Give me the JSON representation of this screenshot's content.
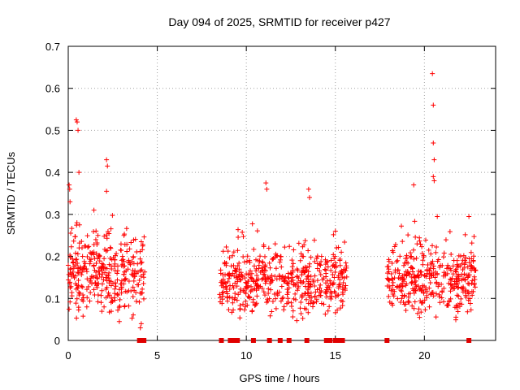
{
  "chart_data": {
    "type": "scatter",
    "title": "Day 094 of 2025, SRMTID for receiver p427",
    "xlabel": "GPS time / hours",
    "ylabel": "SRMTID / TECUs",
    "xlim": [
      0,
      24
    ],
    "ylim": [
      0,
      0.7
    ],
    "x_ticks": [
      0,
      5,
      10,
      15,
      20
    ],
    "y_ticks": [
      0,
      0.1,
      0.2,
      0.3,
      0.4,
      0.5,
      0.6,
      0.7
    ],
    "x_tick_labels": [
      "0",
      "5",
      "10",
      "15",
      "20"
    ],
    "y_tick_labels": [
      "0",
      "0.1",
      "0.2",
      "0.3",
      "0.4",
      "0.5",
      "0.6",
      "0.7"
    ],
    "grid": true,
    "marker": "plus",
    "color": "#ff0000",
    "clusters": [
      {
        "x_start": 0.0,
        "x_end": 4.3,
        "y_center": 0.16,
        "y_spread": 0.08,
        "n": 340
      },
      {
        "x_start": 8.5,
        "x_end": 15.7,
        "y_center": 0.14,
        "y_spread": 0.07,
        "n": 520
      },
      {
        "x_start": 17.9,
        "x_end": 22.9,
        "y_center": 0.14,
        "y_spread": 0.07,
        "n": 380
      }
    ],
    "notable_points": [
      {
        "x": 0.05,
        "y": 0.37
      },
      {
        "x": 0.08,
        "y": 0.36
      },
      {
        "x": 0.1,
        "y": 0.33
      },
      {
        "x": 0.45,
        "y": 0.525
      },
      {
        "x": 0.5,
        "y": 0.52
      },
      {
        "x": 0.55,
        "y": 0.5
      },
      {
        "x": 0.6,
        "y": 0.4
      },
      {
        "x": 2.15,
        "y": 0.43
      },
      {
        "x": 2.2,
        "y": 0.415
      },
      {
        "x": 2.15,
        "y": 0.355
      },
      {
        "x": 11.1,
        "y": 0.375
      },
      {
        "x": 11.15,
        "y": 0.36
      },
      {
        "x": 13.5,
        "y": 0.36
      },
      {
        "x": 13.55,
        "y": 0.34
      },
      {
        "x": 19.4,
        "y": 0.37
      },
      {
        "x": 20.45,
        "y": 0.635
      },
      {
        "x": 20.5,
        "y": 0.56
      },
      {
        "x": 20.5,
        "y": 0.47
      },
      {
        "x": 20.55,
        "y": 0.43
      },
      {
        "x": 20.5,
        "y": 0.39
      },
      {
        "x": 20.55,
        "y": 0.38
      },
      {
        "x": 22.5,
        "y": 0.295
      },
      {
        "x": 4.05,
        "y": 0.03
      },
      {
        "x": 4.1,
        "y": 0.04
      }
    ],
    "zero_points_x": [
      4.0,
      4.25,
      8.6,
      9.1,
      9.3,
      9.5,
      10.4,
      11.3,
      11.9,
      12.4,
      13.4,
      14.5,
      14.7,
      15.0,
      15.2,
      15.4,
      17.9,
      22.5
    ]
  }
}
